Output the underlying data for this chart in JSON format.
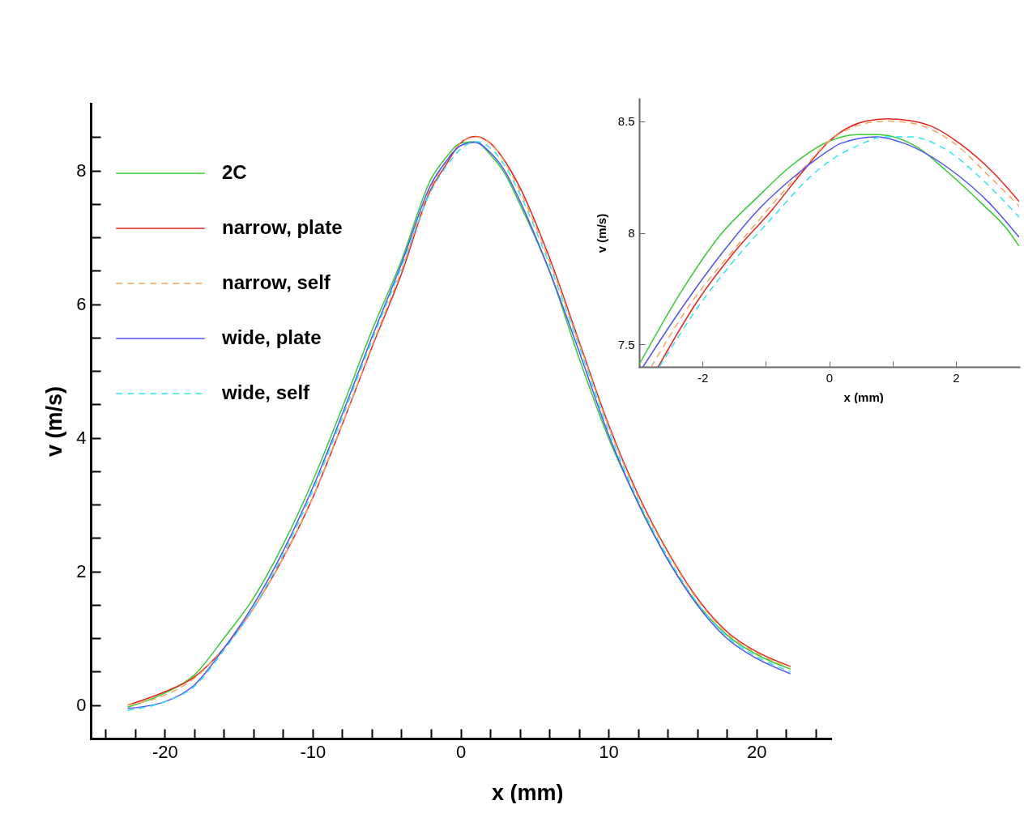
{
  "chart_data": [
    {
      "type": "line",
      "xlabel": "x (mm)",
      "ylabel": "v (m/s)",
      "legend": "top left",
      "grid": false,
      "xlim": [
        -25,
        25
      ],
      "ylim": [
        -0.5,
        9
      ],
      "xticks": [
        {
          "value": -24,
          "label": null
        },
        {
          "value": -22,
          "label": null
        },
        -20,
        {
          "value": -18,
          "label": null
        },
        {
          "value": -16,
          "label": null
        },
        {
          "value": -14,
          "label": null
        },
        {
          "value": -12,
          "label": null
        },
        -10,
        {
          "value": -8,
          "label": null
        },
        {
          "value": -6,
          "label": null
        },
        {
          "value": -4,
          "label": null
        },
        {
          "value": -2,
          "label": null
        },
        0,
        {
          "value": 2,
          "label": null
        },
        {
          "value": 4,
          "label": null
        },
        {
          "value": 6,
          "label": null
        },
        {
          "value": 8,
          "label": null
        },
        10,
        {
          "value": 12,
          "label": null
        },
        {
          "value": 14,
          "label": null
        },
        {
          "value": 16,
          "label": null
        },
        {
          "value": 18,
          "label": null
        },
        20,
        {
          "value": 22,
          "label": null
        },
        {
          "value": 24,
          "label": null
        }
      ],
      "yticks": [
        0,
        {
          "value": 0.5,
          "label": null
        },
        {
          "value": 1,
          "label": null
        },
        {
          "value": 1.5,
          "label": null
        },
        2,
        {
          "value": 2.5,
          "label": null
        },
        {
          "value": 3,
          "label": null
        },
        {
          "value": 3.5,
          "label": null
        },
        4,
        {
          "value": 4.5,
          "label": null
        },
        {
          "value": 5,
          "label": null
        },
        {
          "value": 5.5,
          "label": null
        },
        6,
        {
          "value": 6.5,
          "label": null
        },
        {
          "value": 7,
          "label": null
        },
        {
          "value": 7.5,
          "label": null
        },
        8,
        {
          "value": 8.5,
          "label": null
        }
      ],
      "x": [
        -22.5,
        -20,
        -18,
        -16,
        -14,
        -12,
        -10,
        -8,
        -6,
        -4,
        -2,
        -1,
        0,
        1,
        2,
        3,
        4,
        6,
        8,
        10,
        12,
        14,
        16,
        18,
        20,
        22.3
      ],
      "series": [
        {
          "name": "2C",
          "color": "#33cc33",
          "line_style": "solid",
          "values": [
            -0.03,
            0.18,
            0.45,
            1.0,
            1.6,
            2.4,
            3.35,
            4.45,
            5.6,
            6.65,
            7.87,
            8.19,
            8.41,
            8.43,
            8.24,
            7.95,
            7.5,
            6.5,
            5.2,
            4.0,
            3.03,
            2.18,
            1.52,
            1.05,
            0.76,
            0.54
          ]
        },
        {
          "name": "narrow, plate",
          "color": "#e8221b",
          "line_style": "solid",
          "values": [
            0.0,
            0.2,
            0.42,
            0.85,
            1.45,
            2.2,
            3.1,
            4.2,
            5.35,
            6.45,
            7.72,
            8.08,
            8.41,
            8.51,
            8.41,
            8.14,
            7.75,
            6.7,
            5.45,
            4.2,
            3.15,
            2.3,
            1.6,
            1.1,
            0.8,
            0.58
          ]
        },
        {
          "name": "narrow, self",
          "color": "#f5a55a",
          "line_style": "dashed",
          "values": [
            0.0,
            0.15,
            0.4,
            0.85,
            1.45,
            2.2,
            3.1,
            4.2,
            5.37,
            6.5,
            7.76,
            8.13,
            8.41,
            8.5,
            8.42,
            8.12,
            7.7,
            6.65,
            5.42,
            4.17,
            3.12,
            2.28,
            1.58,
            1.08,
            0.78,
            0.57
          ]
        },
        {
          "name": "wide, plate",
          "color": "#5050ff",
          "line_style": "solid",
          "values": [
            -0.05,
            0.05,
            0.3,
            0.85,
            1.5,
            2.3,
            3.25,
            4.35,
            5.5,
            6.6,
            7.79,
            8.13,
            8.37,
            8.42,
            8.27,
            7.99,
            7.55,
            6.5,
            5.3,
            4.05,
            3.02,
            2.18,
            1.5,
            1.0,
            0.7,
            0.47
          ]
        },
        {
          "name": "wide, self",
          "color": "#2ee6f0",
          "line_style": "dashed",
          "values": [
            -0.08,
            0.05,
            0.28,
            0.82,
            1.45,
            2.25,
            3.2,
            4.3,
            5.45,
            6.55,
            7.69,
            8.05,
            8.32,
            8.43,
            8.34,
            8.07,
            7.65,
            6.6,
            5.38,
            4.12,
            3.07,
            2.22,
            1.53,
            1.03,
            0.73,
            0.5
          ]
        }
      ]
    },
    {
      "type": "line",
      "xlabel": "x (mm)",
      "ylabel": "v (m/s)",
      "grid": false,
      "xlim": [
        -3,
        3
      ],
      "ylim": [
        7.4,
        8.6
      ],
      "xticks": [
        -2,
        {
          "value": -1,
          "label": null
        },
        0,
        {
          "value": 1,
          "label": null
        },
        2
      ],
      "yticks": [
        7.5,
        8,
        8.5
      ],
      "series": [
        {
          "color": "#33cc33",
          "line_style": "solid",
          "x": [
            -3.0,
            -2.35,
            -1.72,
            -1.13,
            -0.6,
            0,
            0.45,
            0.75,
            1.41,
            1.84,
            2.45,
            2.8,
            3.0
          ],
          "values": [
            7.41,
            7.73,
            7.99,
            8.16,
            8.3,
            8.41,
            8.44,
            8.44,
            8.38,
            8.28,
            8.12,
            8.02,
            7.94
          ]
        },
        {
          "color": "#e8221b",
          "line_style": "solid",
          "x": [
            -2.7,
            -2.09,
            -1.48,
            -0.91,
            -0.43,
            0,
            0.58,
            0.93,
            1.32,
            1.67,
            2.06,
            2.59,
            3.0
          ],
          "values": [
            7.4,
            7.69,
            7.92,
            8.1,
            8.27,
            8.41,
            8.5,
            8.51,
            8.5,
            8.47,
            8.4,
            8.27,
            8.14
          ]
        },
        {
          "color": "#f5a55a",
          "line_style": "dashed",
          "x": [
            -2.81,
            -2.17,
            -1.52,
            -0.95,
            -0.43,
            0,
            0.58,
            0.93,
            1.32,
            1.93,
            2.54,
            3.0
          ],
          "values": [
            7.4,
            7.69,
            7.92,
            8.11,
            8.28,
            8.41,
            8.49,
            8.5,
            8.49,
            8.41,
            8.25,
            8.12
          ]
        },
        {
          "color": "#5050ff",
          "line_style": "solid",
          "x": [
            -2.94,
            -2.31,
            -1.69,
            -1.13,
            -0.6,
            0,
            0.18,
            0.75,
            1.19,
            1.93,
            2.54,
            3.0
          ],
          "values": [
            7.4,
            7.67,
            7.91,
            8.1,
            8.24,
            8.37,
            8.4,
            8.43,
            8.4,
            8.28,
            8.13,
            7.98
          ]
        },
        {
          "color": "#2ee6f0",
          "line_style": "dashed",
          "x": [
            -2.68,
            -2.04,
            -1.43,
            -0.86,
            -0.34,
            0,
            0.45,
            0.88,
            1.28,
            1.8,
            2.45,
            3.0
          ],
          "values": [
            7.4,
            7.68,
            7.9,
            8.08,
            8.24,
            8.32,
            8.39,
            8.43,
            8.43,
            8.38,
            8.23,
            8.07
          ]
        }
      ]
    }
  ]
}
